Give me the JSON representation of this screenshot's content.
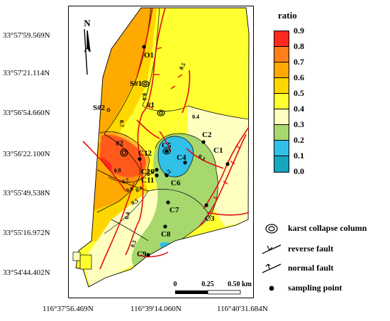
{
  "north_label": "N",
  "latitudes": [
    "33°57'59.569N",
    "33°57'21.114N",
    "33°56'54.660N",
    "33°56'22.100N",
    "33°55'49.538N",
    "33°55'16.972N",
    "33°54'44.402N"
  ],
  "longitudes": [
    "116°37'56.469N",
    "116°39'14.060N",
    "116°40'31.684N"
  ],
  "colorbar": {
    "title": "ratio",
    "ticks": [
      "0.9",
      "0.8",
      "0.7",
      "0.6",
      "0.5",
      "0.4",
      "0.3",
      "0.2",
      "0.1",
      "0.0"
    ],
    "colors": [
      "#ff2a1e",
      "#ff7f1a",
      "#ffaa00",
      "#ffd700",
      "#ffff30",
      "#ffffc0",
      "#a6d86e",
      "#30c0e8",
      "#17a7bd"
    ]
  },
  "contour_labels": [
    "0.5",
    "0.4",
    "0.3",
    "0.2",
    "0.3",
    "0.4",
    "0.5",
    "0.6",
    "0.7",
    "0.8",
    "0.7",
    "0.4",
    "0.3",
    "0.4"
  ],
  "karst_labels": [
    "S#1",
    "S#2",
    "#1",
    "#2"
  ],
  "sampling_points": [
    "O1",
    "C2",
    "C3",
    "C4",
    "C5",
    "C1",
    "C10",
    "C11",
    "C12",
    "C6",
    "C7",
    "C8",
    "C9"
  ],
  "scale_bar": {
    "labels": [
      "0",
      "0.25",
      "0.50 km"
    ]
  },
  "legend": [
    {
      "icon": "karst-collapse-icon",
      "label": "karst collapse column"
    },
    {
      "icon": "reverse-fault-icon",
      "label": "reverse fault"
    },
    {
      "icon": "normal-fault-icon",
      "label": "normal fault"
    },
    {
      "icon": "sampling-point-icon",
      "label": "sampling point"
    }
  ]
}
